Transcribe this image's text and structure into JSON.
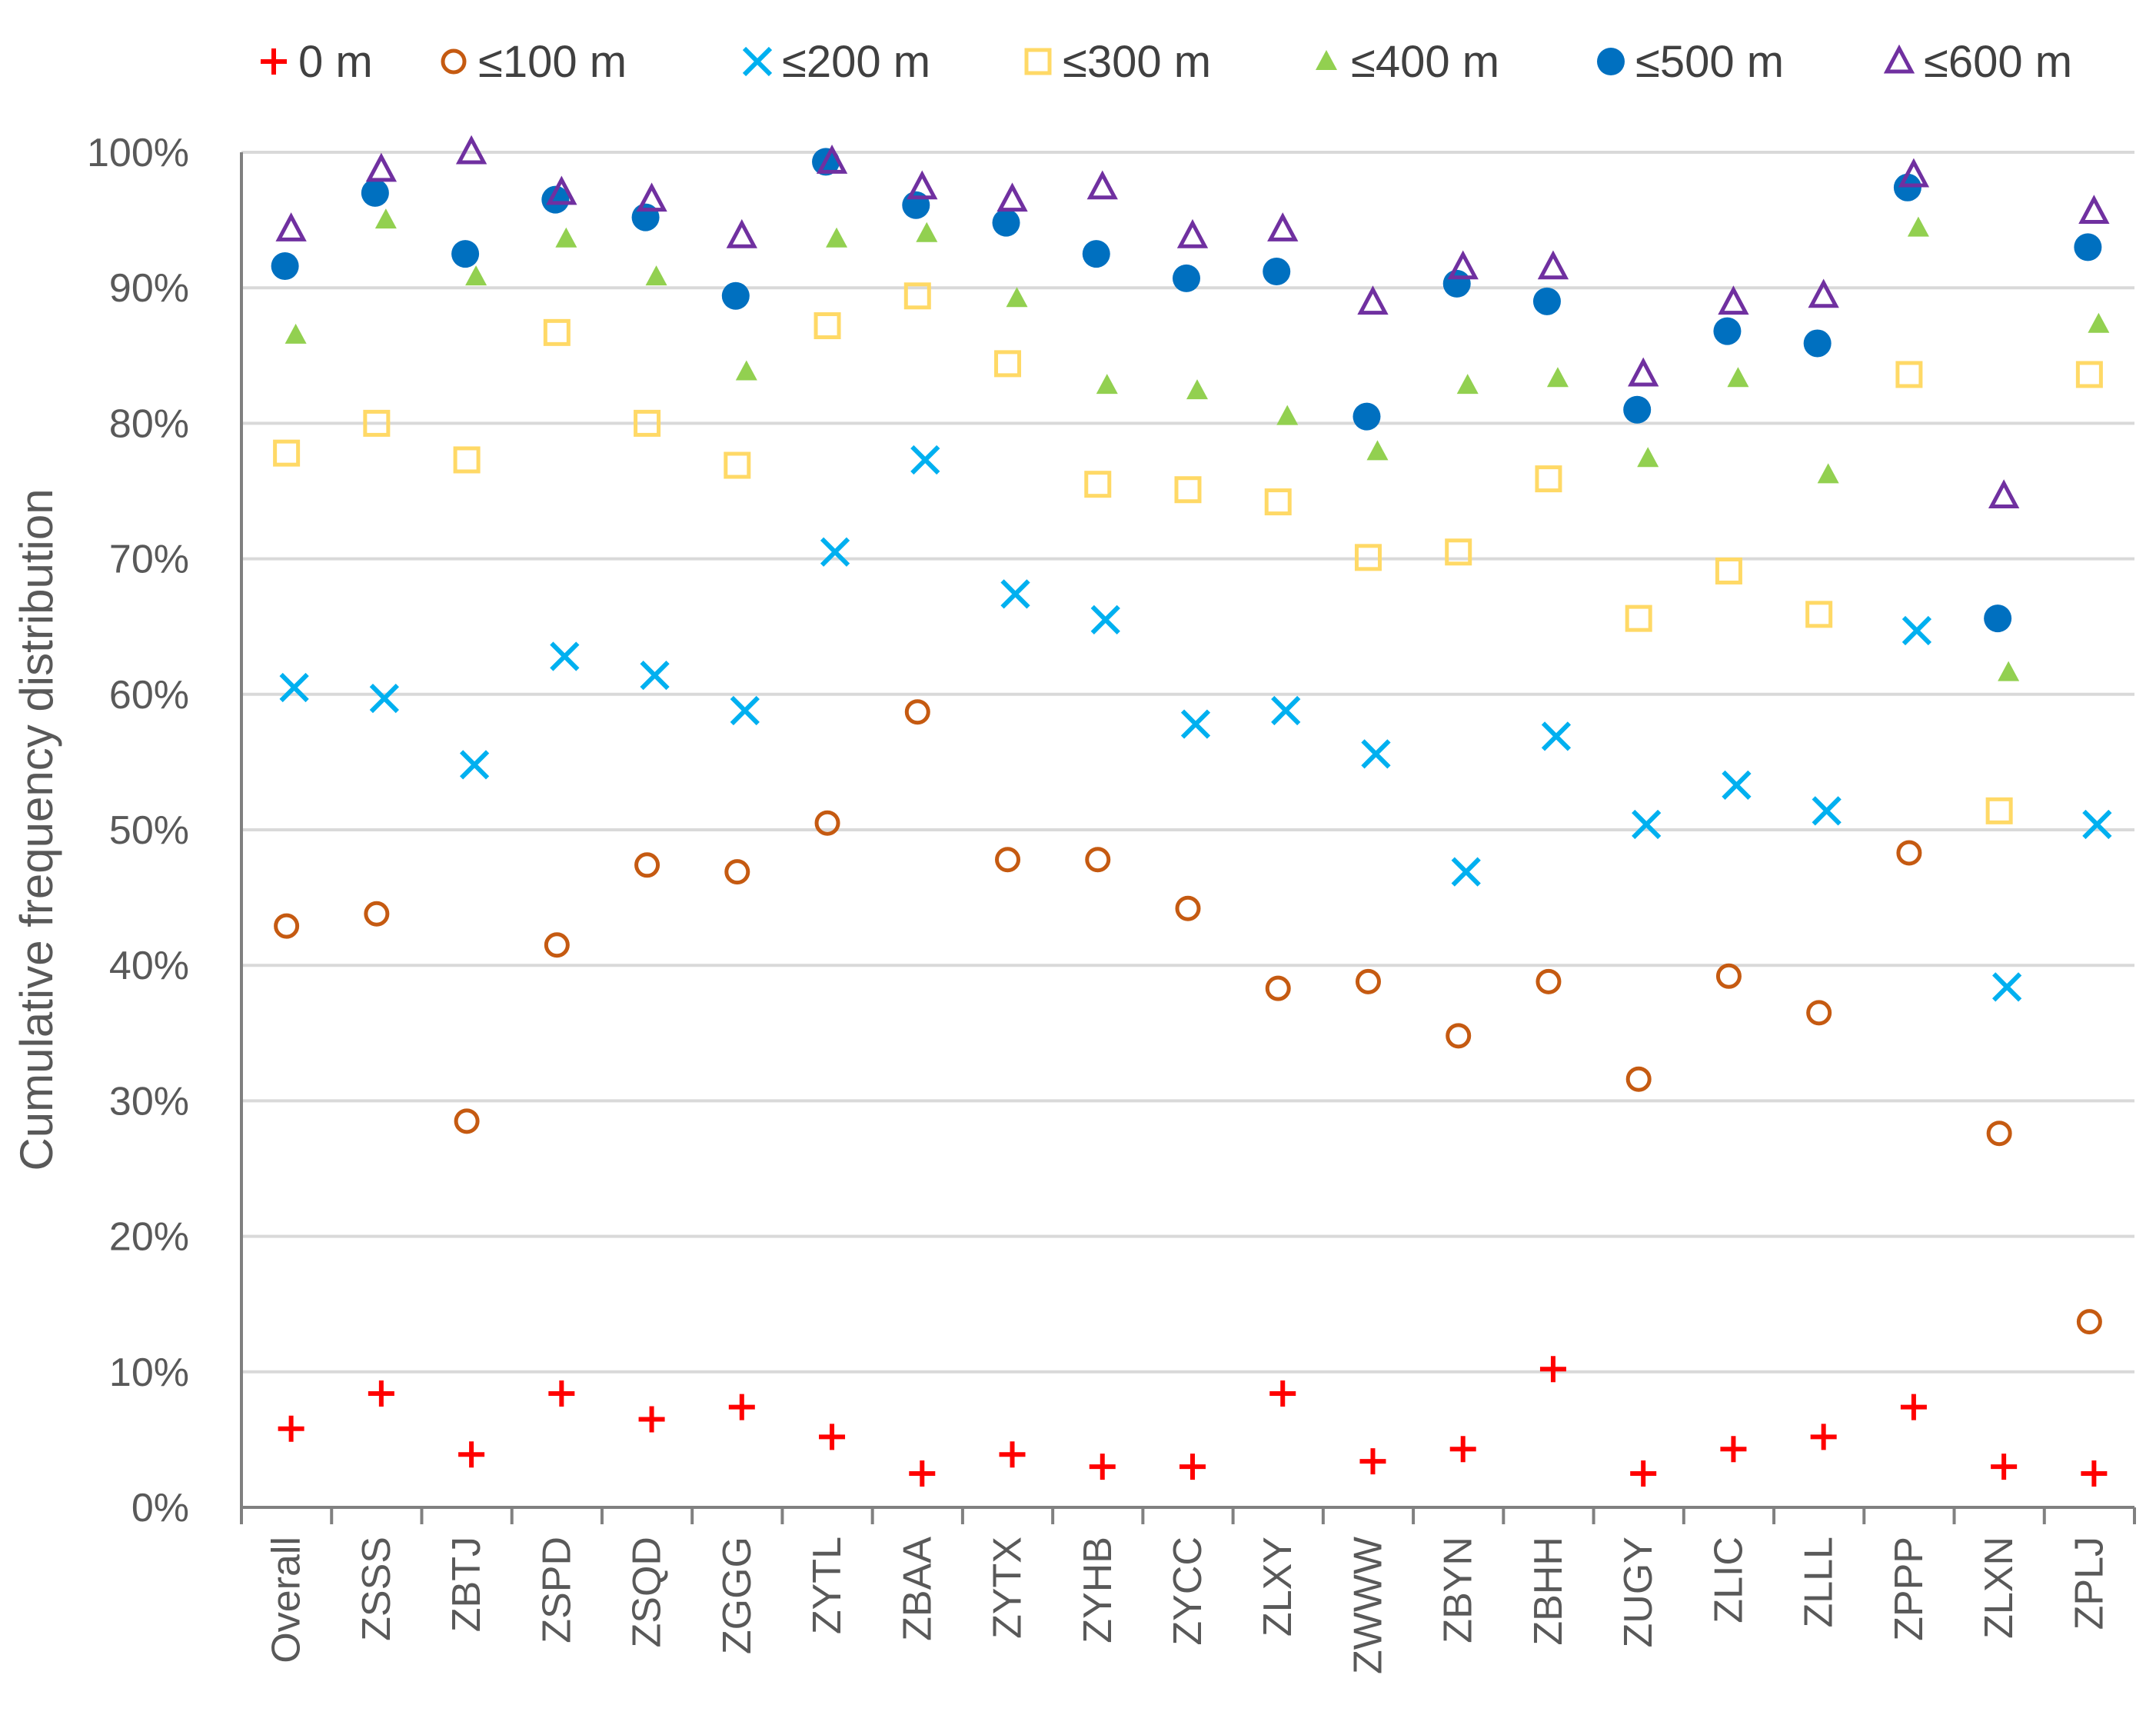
{
  "chart_data": {
    "type": "scatter",
    "title": "",
    "xlabel": "",
    "ylabel": "Cumulative frequency distribution",
    "ylim": [
      0,
      100
    ],
    "yticks": [
      "0%",
      "10%",
      "20%",
      "30%",
      "40%",
      "50%",
      "60%",
      "70%",
      "80%",
      "90%",
      "100%"
    ],
    "grid": true,
    "legend_position": "top",
    "categories": [
      "Overall",
      "ZSSS",
      "ZBTJ",
      "ZSPD",
      "ZSQD",
      "ZGGG",
      "ZYTL",
      "ZBAA",
      "ZYTX",
      "ZYHB",
      "ZYCC",
      "ZLXY",
      "ZWWW",
      "ZBYN",
      "ZBHH",
      "ZUGY",
      "ZLIC",
      "ZLLL",
      "ZPPP",
      "ZLXN",
      "ZPLJ"
    ],
    "series": [
      {
        "name": "0 m",
        "marker": "plus",
        "color": "#FF0000",
        "values": [
          5.8,
          8.4,
          3.9,
          8.4,
          6.5,
          7.4,
          5.2,
          2.5,
          3.9,
          3.0,
          3.0,
          8.4,
          3.4,
          4.3,
          10.2,
          2.5,
          4.3,
          5.2,
          7.4,
          3.0,
          2.5
        ]
      },
      {
        "name": "≤100 m",
        "marker": "circle-open",
        "color": "#C55A11",
        "values": [
          42.9,
          43.8,
          28.5,
          41.5,
          47.4,
          46.9,
          50.5,
          58.7,
          47.8,
          47.8,
          44.2,
          38.3,
          38.8,
          34.8,
          38.8,
          31.6,
          39.2,
          36.5,
          48.3,
          27.6,
          13.7
        ]
      },
      {
        "name": "≤200 m",
        "marker": "x",
        "color": "#00B0F0",
        "values": [
          60.5,
          59.7,
          54.8,
          62.8,
          61.4,
          58.8,
          70.5,
          77.3,
          67.4,
          65.5,
          57.8,
          58.8,
          55.6,
          46.9,
          56.9,
          50.4,
          53.3,
          51.4,
          64.7,
          38.4,
          50.4
        ]
      },
      {
        "name": "≤300 m",
        "marker": "square-open",
        "color": "#FFD966",
        "values": [
          77.8,
          80.0,
          77.3,
          86.7,
          80.0,
          76.9,
          87.2,
          89.4,
          84.4,
          75.5,
          75.1,
          74.2,
          70.1,
          70.5,
          75.9,
          65.6,
          69.1,
          65.9,
          83.6,
          51.4,
          83.6
        ]
      },
      {
        "name": "≤400 m",
        "marker": "triangle-filled",
        "color": "#92D050",
        "values": [
          86.5,
          95.0,
          90.8,
          93.6,
          90.8,
          83.8,
          93.6,
          94.0,
          89.2,
          82.8,
          82.4,
          80.5,
          77.9,
          82.8,
          83.3,
          77.4,
          83.3,
          76.2,
          94.4,
          61.6,
          87.3
        ]
      },
      {
        "name": "≤500 m",
        "marker": "circle-filled",
        "color": "#0070C0",
        "values": [
          91.6,
          97.0,
          92.5,
          96.5,
          95.2,
          89.4,
          99.3,
          96.1,
          94.8,
          92.5,
          90.7,
          91.2,
          80.5,
          90.3,
          89.0,
          81.0,
          86.8,
          85.9,
          97.4,
          65.6,
          93.0
        ]
      },
      {
        "name": "≤600 m",
        "marker": "triangle-open",
        "color": "#7030A0",
        "values": [
          94.3,
          98.7,
          100.0,
          97.0,
          96.5,
          93.8,
          99.3,
          97.4,
          96.5,
          97.4,
          93.8,
          94.3,
          88.9,
          91.5,
          91.5,
          83.6,
          88.9,
          89.4,
          98.3,
          74.6,
          95.6
        ]
      }
    ]
  }
}
